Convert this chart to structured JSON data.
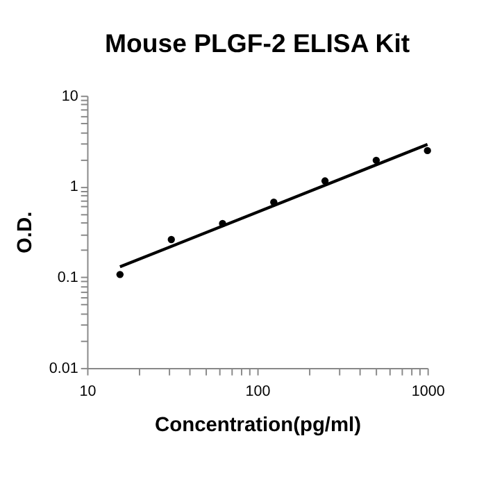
{
  "chart_data": {
    "type": "scatter",
    "title": "Mouse PLGF-2 ELISA Kit",
    "xlabel": "Concentration(pg/ml)",
    "ylabel": "O.D.",
    "log": "xy",
    "grid": false,
    "marker": "circle",
    "xlim": [
      10,
      1000
    ],
    "ylim": [
      0.01,
      10
    ],
    "xticks": [
      10,
      {
        "value": 20,
        "label": null
      },
      {
        "value": 30,
        "label": null
      },
      {
        "value": 40,
        "label": null
      },
      {
        "value": 50,
        "label": null
      },
      {
        "value": 60,
        "label": null
      },
      {
        "value": 70,
        "label": null
      },
      {
        "value": 80,
        "label": null
      },
      {
        "value": 90,
        "label": null
      },
      100,
      {
        "value": 200,
        "label": null
      },
      {
        "value": 300,
        "label": null
      },
      {
        "value": 400,
        "label": null
      },
      {
        "value": 500,
        "label": null
      },
      {
        "value": 600,
        "label": null
      },
      {
        "value": 700,
        "label": null
      },
      {
        "value": 800,
        "label": null
      },
      {
        "value": 900,
        "label": null
      },
      1000
    ],
    "yticks": [
      0.01,
      {
        "value": 0.02,
        "label": null
      },
      {
        "value": 0.03,
        "label": null
      },
      {
        "value": 0.04,
        "label": null
      },
      {
        "value": 0.05,
        "label": null
      },
      {
        "value": 0.06,
        "label": null
      },
      {
        "value": 0.07,
        "label": null
      },
      {
        "value": 0.08,
        "label": null
      },
      {
        "value": 0.09,
        "label": null
      },
      0.1,
      {
        "value": 0.2,
        "label": null
      },
      {
        "value": 0.3,
        "label": null
      },
      {
        "value": 0.4,
        "label": null
      },
      {
        "value": 0.5,
        "label": null
      },
      {
        "value": 0.6,
        "label": null
      },
      {
        "value": 0.7,
        "label": null
      },
      {
        "value": 0.8,
        "label": null
      },
      {
        "value": 0.9,
        "label": null
      },
      1,
      {
        "value": 2,
        "label": null
      },
      {
        "value": 3,
        "label": null
      },
      {
        "value": 4,
        "label": null
      },
      {
        "value": 5,
        "label": null
      },
      {
        "value": 6,
        "label": null
      },
      {
        "value": 7,
        "label": null
      },
      {
        "value": 8,
        "label": null
      },
      {
        "value": 9,
        "label": null
      },
      10
    ],
    "series": [
      {
        "type": "scatter",
        "color": "#000000",
        "x": [
          15.6,
          31.25,
          62.5,
          125,
          250,
          500,
          1000
        ],
        "values": [
          0.107,
          0.26,
          0.39,
          0.67,
          1.15,
          1.94,
          2.48
        ]
      },
      {
        "type": "line",
        "color": "#000000",
        "line_style": "solid",
        "marker": "none",
        "x": [
          15.6,
          1000
        ],
        "values": [
          0.13,
          2.9
        ]
      }
    ]
  }
}
